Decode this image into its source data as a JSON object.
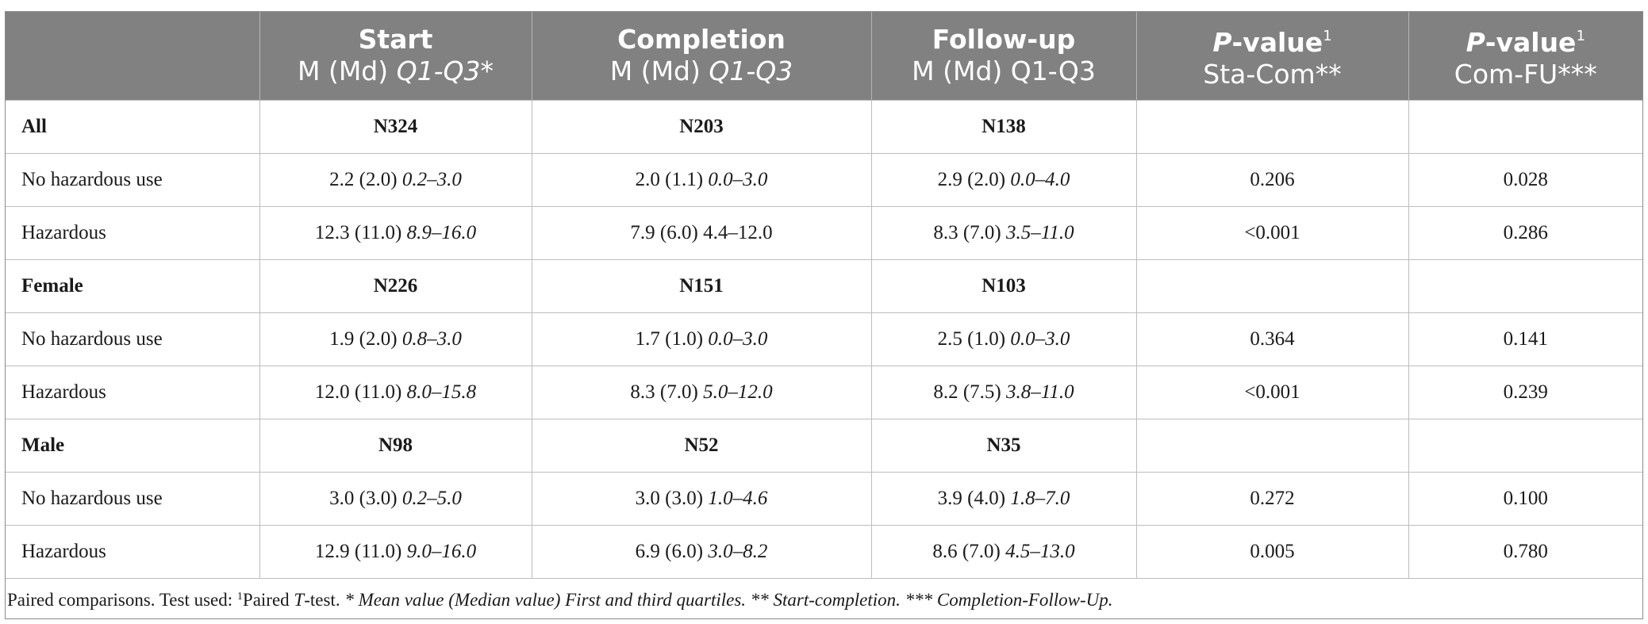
{
  "table": {
    "headers": [
      {
        "line1": "",
        "line2": ""
      },
      {
        "line1": "Start",
        "line2_plain": "M (Md) ",
        "line2_italic": "Q1-Q3",
        "line2_suffix": "*"
      },
      {
        "line1": "Completion",
        "line2_plain": "M (Md) ",
        "line2_italic": "Q1-Q3",
        "line2_suffix": ""
      },
      {
        "line1": "Follow-up",
        "line2_plain": "M (Md) Q1-Q3",
        "line2_italic": "",
        "line2_suffix": ""
      },
      {
        "line1_italic": "P",
        "line1_rest": "-value",
        "line1_sup": "1",
        "line2_plain": "Sta-Com**"
      },
      {
        "line1_italic": "P",
        "line1_rest": "-value",
        "line1_sup": "1",
        "line2_plain": "Com-FU***"
      }
    ],
    "rows": [
      {
        "type": "group",
        "label": "All",
        "c1": "N324",
        "c2": "N203",
        "c3": "N138",
        "c4": "",
        "c5": ""
      },
      {
        "type": "data",
        "label": "No hazardous use",
        "c1": {
          "plain": "2.2 (2.0) ",
          "italic": "0.2–3.0"
        },
        "c2": {
          "plain": "2.0 (1.1) ",
          "italic": "0.0–3.0"
        },
        "c3": {
          "plain": "2.9 (2.0) ",
          "italic": "0.0–4.0"
        },
        "c4": "0.206",
        "c5": "0.028"
      },
      {
        "type": "data",
        "label": "Hazardous",
        "c1": {
          "plain": "12.3 (11.0) ",
          "italic": "8.9–16.0"
        },
        "c2": {
          "plain": "7.9 (6.0) 4.4–12.0",
          "italic": ""
        },
        "c3": {
          "plain": "8.3 (7.0) ",
          "italic": "3.5–11.0"
        },
        "c4": "<0.001",
        "c5": "0.286"
      },
      {
        "type": "group",
        "label": "Female",
        "c1": "N226",
        "c2": "N151",
        "c3": "N103",
        "c4": "",
        "c5": ""
      },
      {
        "type": "data",
        "label": "No hazardous use",
        "c1": {
          "plain": "1.9 (2.0) ",
          "italic": "0.8–3.0"
        },
        "c2": {
          "plain": "1.7 (1.0) ",
          "italic": "0.0–3.0"
        },
        "c3": {
          "plain": "2.5 (1.0) ",
          "italic": "0.0–3.0"
        },
        "c4": "0.364",
        "c5": "0.141"
      },
      {
        "type": "data",
        "label": "Hazardous",
        "c1": {
          "plain": "12.0 (11.0) ",
          "italic": "8.0–15.8"
        },
        "c2": {
          "plain": "8.3 (7.0) ",
          "italic": "5.0–12.0"
        },
        "c3": {
          "plain": "8.2 (7.5) ",
          "italic": "3.8–11.0"
        },
        "c4": "<0.001",
        "c5": "0.239"
      },
      {
        "type": "group",
        "label": "Male",
        "c1": "N98",
        "c2": "N52",
        "c3": "N35",
        "c4": "",
        "c5": ""
      },
      {
        "type": "data",
        "label": "No hazardous use",
        "c1": {
          "plain": "3.0 (3.0) ",
          "italic": "0.2–5.0"
        },
        "c2": {
          "plain": "3.0 (3.0) ",
          "italic": "1.0–4.6"
        },
        "c3": {
          "plain": "3.9 (4.0) ",
          "italic": "1.8–7.0"
        },
        "c4": "0.272",
        "c5": "0.100"
      },
      {
        "type": "data",
        "label": "Hazardous",
        "c1": {
          "plain": "12.9 (11.0) ",
          "italic": "9.0–16.0"
        },
        "c2": {
          "plain": "6.9 (6.0) ",
          "italic": "3.0–8.2"
        },
        "c3": {
          "plain": "8.6 (7.0) ",
          "italic": "4.5–13.0"
        },
        "c4": "0.005",
        "c5": "0.780"
      }
    ]
  },
  "footnote": {
    "prefix": "Paired comparisons. Test used: ",
    "sup": "1",
    "paired": "Paired ",
    "t_italic": "T",
    "after_t": "-test. ",
    "italic_rest": "* Mean value (Median value) First and third quartiles. ** Start-completion. *** Completion-Follow-Up."
  }
}
